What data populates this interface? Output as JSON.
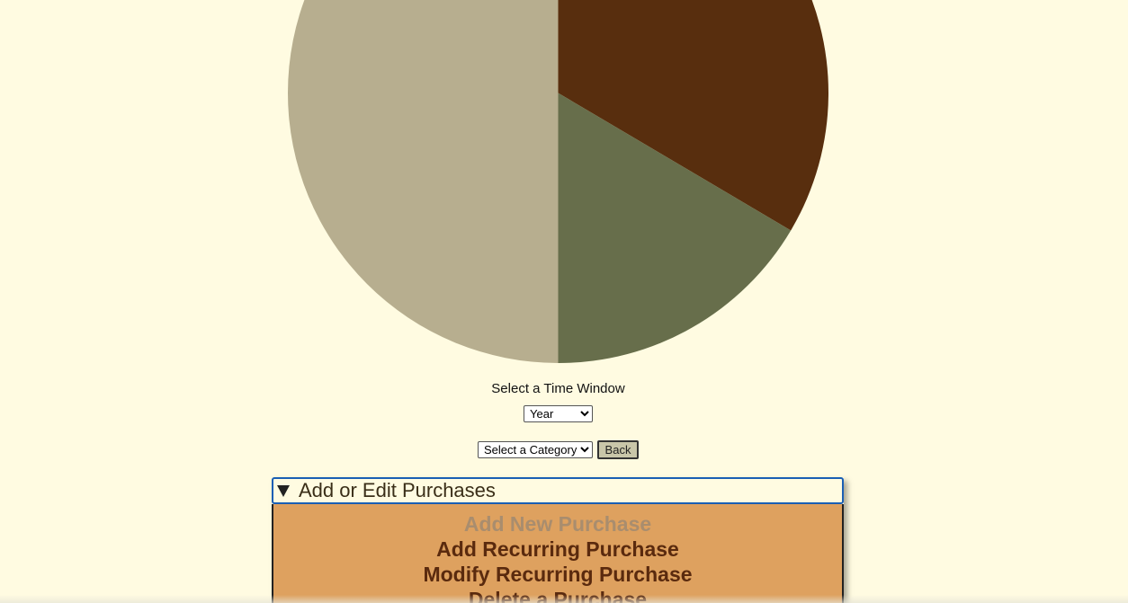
{
  "chart_data": {
    "type": "pie",
    "title": "",
    "slices": [
      {
        "label": "",
        "value": 33.5,
        "color": "#582e0e"
      },
      {
        "label": "",
        "value": 16.5,
        "color": "#676e4b"
      },
      {
        "label": "",
        "value": 50.0,
        "color": "#b7ae8f"
      }
    ]
  },
  "controls": {
    "time_window_label": "Select a Time Window",
    "time_window_selected": "Year",
    "category_selected": "Select a Category",
    "back_label": "Back"
  },
  "purchases": {
    "title": "Add or Edit Purchases",
    "items": [
      "Add New Purchase",
      "Add Recurring Purchase",
      "Modify Recurring Purchase",
      "Delete a Purchase"
    ]
  }
}
